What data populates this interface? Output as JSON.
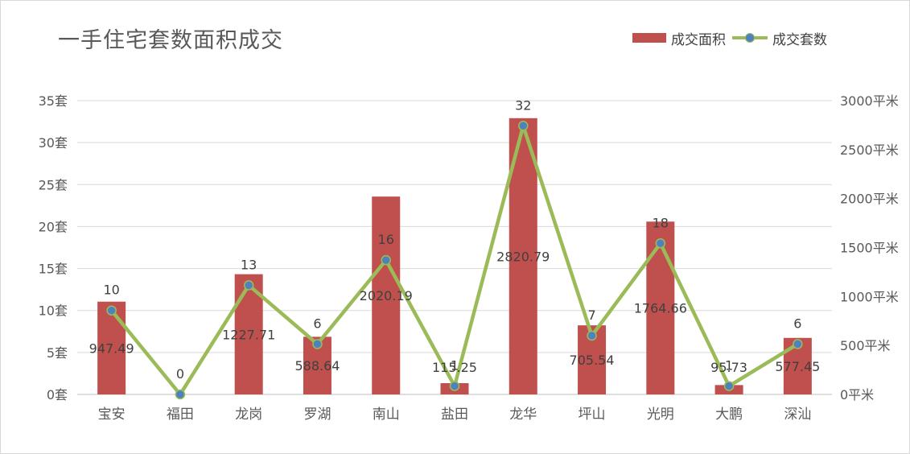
{
  "chart_data": {
    "type": "bar",
    "title": "一手住宅套数面积成交",
    "categories": [
      "宝安",
      "福田",
      "龙岗",
      "罗湖",
      "南山",
      "盐田",
      "龙华",
      "坪山",
      "光明",
      "大鹏",
      "深汕"
    ],
    "series": [
      {
        "name": "成交面积",
        "type": "bar",
        "axis": "right",
        "color": "#c0504d",
        "values": [
          947.49,
          0,
          1227.71,
          588.64,
          2020.19,
          115.25,
          2820.79,
          705.54,
          1764.66,
          95.73,
          577.45
        ],
        "labels": [
          "947.49",
          "",
          "1227.71",
          "588.64",
          "2020.19",
          "115.25",
          "2820.79",
          "705.54",
          "1764.66",
          "95.73",
          "577.45"
        ]
      },
      {
        "name": "成交套数",
        "type": "line",
        "axis": "left",
        "color": "#9bbb59",
        "marker_color": "#4f81bd",
        "values": [
          10,
          0,
          13,
          6,
          16,
          1,
          32,
          7,
          18,
          1,
          6
        ],
        "labels": [
          "10",
          "0",
          "13",
          "6",
          "16",
          "1",
          "32",
          "7",
          "18",
          "1",
          "6"
        ]
      }
    ],
    "y_left": {
      "min": 0,
      "max": 35,
      "ticks": [
        "0套",
        "5套",
        "10套",
        "15套",
        "20套",
        "25套",
        "30套",
        "35套"
      ]
    },
    "y_right": {
      "min": 0,
      "max": 3000,
      "ticks": [
        "0平米",
        "500平米",
        "1000平米",
        "1500平米",
        "2000平米",
        "2500平米",
        "3000平米"
      ]
    },
    "grid": true,
    "legend": "top-right"
  }
}
